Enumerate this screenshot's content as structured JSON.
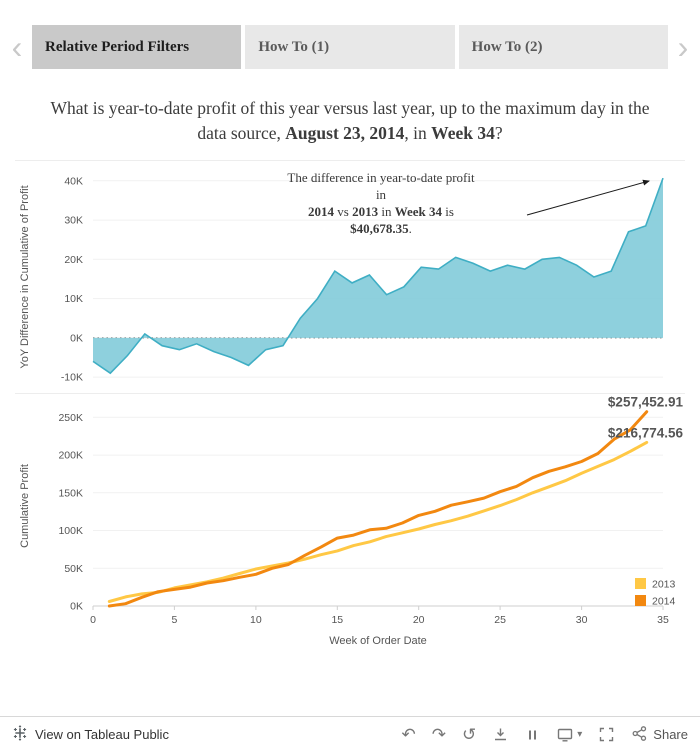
{
  "tabs": {
    "prev_arrow": "‹",
    "next_arrow": "›",
    "items": [
      {
        "label": "Relative Period Filters",
        "active": true
      },
      {
        "label": "How To (1)",
        "active": false
      },
      {
        "label": "How To (2)",
        "active": false
      }
    ]
  },
  "title": {
    "text_before": "What is year-to-date profit of this year versus last year, up to the maximum day in the data source, ",
    "bold_date": "August 23, 2014",
    "text_mid": ", in ",
    "bold_week": "Week 34",
    "text_after": "?"
  },
  "annotation": {
    "line1": "The difference in year-to-date profit",
    "line2": "in",
    "bold_year_a": "2014",
    "sep1": " vs ",
    "bold_year_b": "2013",
    "sep2": " in ",
    "bold_week": "Week 34",
    "sep3": " is",
    "bold_amount": "$40,678.35",
    "period": "."
  },
  "chart_data": [
    {
      "type": "area",
      "name": "yoy-difference-in-cumulative-profit",
      "ylabel": "YoY Difference in Cumulative of Profit",
      "yticks_k": [
        40,
        30,
        20,
        10,
        0,
        -10
      ],
      "ylim_k": [
        -12,
        43
      ],
      "fill": "#82CBD9",
      "stroke": "#3FAEC4",
      "final_value_label": "$40,678.35",
      "x": [
        1,
        2,
        3,
        4,
        5,
        6,
        7,
        8,
        9,
        10,
        11,
        12,
        13,
        14,
        15,
        16,
        17,
        18,
        19,
        20,
        21,
        22,
        23,
        24,
        25,
        26,
        27,
        28,
        29,
        30,
        31,
        32,
        33,
        34
      ],
      "values_k": [
        -6,
        -9,
        -4.5,
        1,
        -2,
        -3,
        -1.5,
        -3.5,
        -5,
        -7,
        -3,
        -2,
        5,
        10,
        17,
        14,
        16,
        11,
        13,
        18,
        17.5,
        20.5,
        19,
        17,
        18.5,
        17.5,
        20,
        20.5,
        18.5,
        15.5,
        17,
        27,
        28.5,
        40.68
      ]
    },
    {
      "type": "line",
      "name": "cumulative-profit-by-week",
      "ylabel": "Cumulative Profit",
      "xlabel": "Week of Order Date",
      "yticks_k": [
        0,
        50,
        100,
        150,
        200,
        250
      ],
      "ylim_k": [
        0,
        265
      ],
      "xticks": [
        0,
        5,
        10,
        15,
        20,
        25,
        30,
        35
      ],
      "xlim": [
        0,
        35
      ],
      "x": [
        1,
        2,
        3,
        4,
        5,
        6,
        7,
        8,
        9,
        10,
        11,
        12,
        13,
        14,
        15,
        16,
        17,
        18,
        19,
        20,
        21,
        22,
        23,
        24,
        25,
        26,
        27,
        28,
        29,
        30,
        31,
        32,
        33,
        34
      ],
      "series": [
        {
          "name": "2013",
          "color": "#FFC845",
          "end_label": "$216,774.56",
          "values_k": [
            6,
            12,
            16,
            18,
            24,
            28,
            32,
            37,
            43,
            49,
            53,
            57,
            62,
            68,
            73,
            80,
            85,
            92,
            97,
            102,
            108,
            113,
            119,
            126,
            133,
            141,
            150,
            158,
            166,
            176,
            185,
            194,
            205,
            216.77
          ]
        },
        {
          "name": "2014",
          "color": "#F28810",
          "end_label": "$257,452.91",
          "values_k": [
            0,
            3,
            11.5,
            19,
            22,
            25,
            30.5,
            33.5,
            38,
            42,
            50,
            55,
            67,
            78,
            90,
            94,
            101,
            103,
            110,
            120,
            125.5,
            133.5,
            138,
            143,
            151.5,
            158.5,
            170,
            178.5,
            184.5,
            191.5,
            202,
            221,
            233.5,
            257.45
          ]
        }
      ],
      "legend": [
        {
          "label": "2013",
          "color": "#FFC845"
        },
        {
          "label": "2014",
          "color": "#F28810"
        }
      ]
    }
  ],
  "toolbar": {
    "brand_label": "View on Tableau Public",
    "share_label": "Share",
    "undo_glyph": "↶",
    "redo_glyph": "↷",
    "revert_glyph": "↺",
    "device_caret": "▾"
  }
}
